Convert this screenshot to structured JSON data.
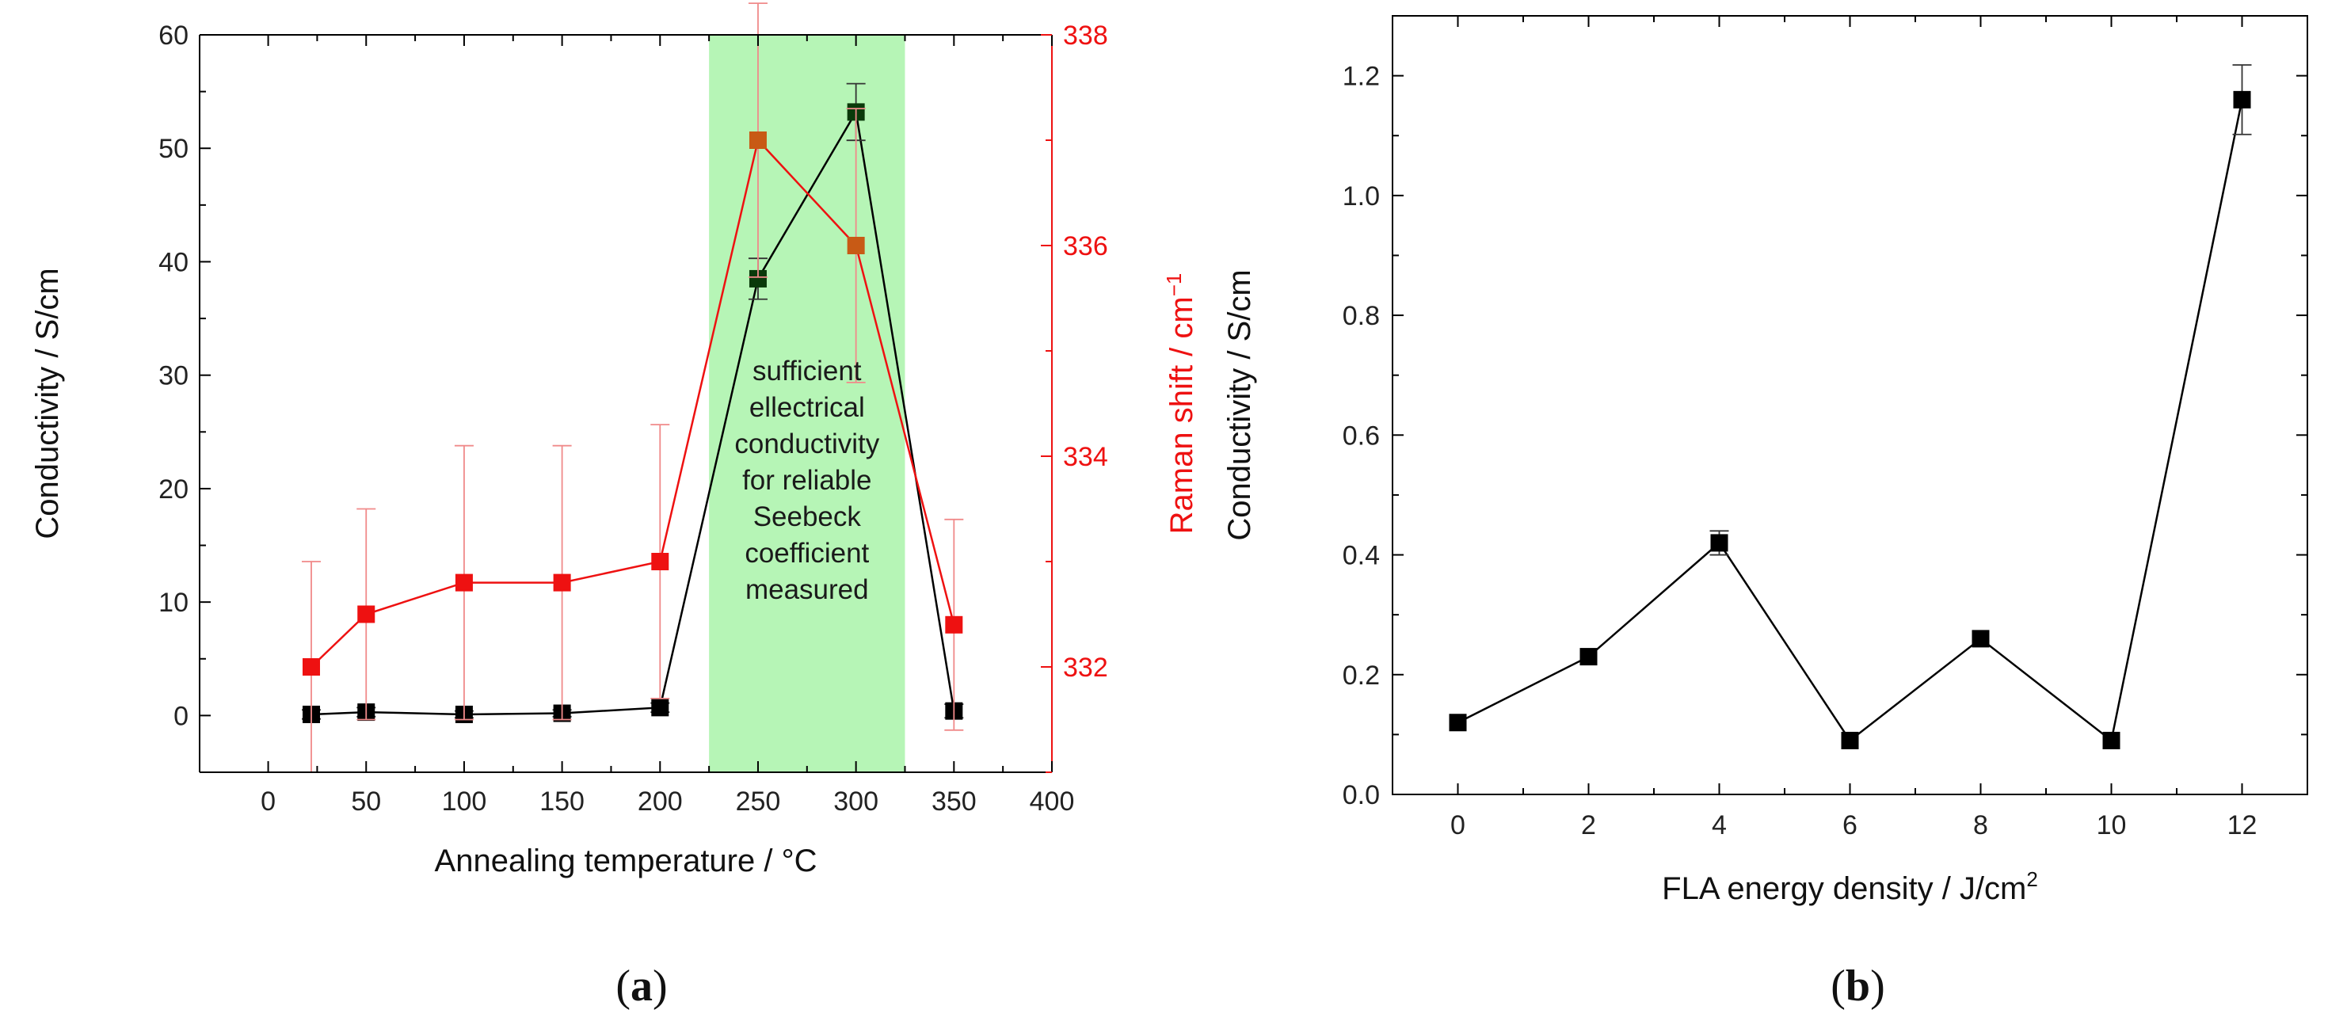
{
  "colors": {
    "axis": "#000000",
    "conductivity_series": "#000000",
    "raman_series": "#ee1111",
    "raman_axis": "#ee1111",
    "highlight_fill": "#b6f5b6",
    "highlight_marker": "#0a3a0a",
    "raman_highlight_marker": "#c85a15"
  },
  "panels": {
    "a": {
      "label_open": "(",
      "label_letter": "a",
      "label_close": ")"
    },
    "b": {
      "label_open": "(",
      "label_letter": "b",
      "label_close": ")"
    }
  },
  "chart_data": [
    {
      "id": "a",
      "type": "line",
      "title": "",
      "xlabel": "Annealing temperature / °C",
      "ylabel": "Conductivity / S/cm",
      "y2label_main": "Raman shift / cm",
      "y2label_sup": "−1",
      "xlim": [
        -35,
        400
      ],
      "ylim": [
        -5,
        60
      ],
      "y2lim": [
        331.0,
        338.0
      ],
      "xticks": [
        0,
        50,
        100,
        150,
        200,
        250,
        300,
        350,
        400
      ],
      "yticks": [
        0,
        10,
        20,
        30,
        40,
        50,
        60
      ],
      "y2ticks": [
        332,
        334,
        336,
        338
      ],
      "highlight": {
        "x_range": [
          225,
          325
        ],
        "text": [
          "sufficient",
          "ellectrical",
          "conductivity",
          "for reliable",
          "Seebeck",
          "coefficient",
          "measured"
        ]
      },
      "series": [
        {
          "name": "Conductivity",
          "axis": "left",
          "x": [
            22,
            50,
            100,
            150,
            200,
            250,
            300,
            350
          ],
          "values": [
            0.1,
            0.3,
            0.1,
            0.2,
            0.7,
            38.5,
            53.2,
            0.4
          ],
          "errors": [
            0.4,
            0.4,
            0.3,
            0.3,
            0.4,
            1.8,
            2.5,
            0.6
          ]
        },
        {
          "name": "Raman shift",
          "axis": "right",
          "x": [
            22,
            50,
            100,
            150,
            200,
            250,
            300,
            350
          ],
          "values": [
            332.0,
            332.5,
            332.8,
            332.8,
            333.0,
            337.0,
            336.0,
            332.4
          ],
          "errors": [
            1.0,
            1.0,
            1.3,
            1.3,
            1.3,
            1.3,
            1.3,
            1.0
          ]
        }
      ]
    },
    {
      "id": "b",
      "type": "line",
      "title": "",
      "xlabel_main": "FLA energy density / J/cm",
      "xlabel_sup": "2",
      "ylabel": "Conductivity / S/cm",
      "xlim": [
        -1,
        13
      ],
      "ylim": [
        0.0,
        1.3
      ],
      "xticks": [
        0,
        2,
        4,
        6,
        8,
        10,
        12
      ],
      "yticks": [
        "0.0",
        "0.2",
        "0.4",
        "0.6",
        "0.8",
        "1.0",
        "1.2"
      ],
      "series": [
        {
          "name": "Conductivity",
          "x": [
            0,
            2,
            4,
            6,
            8,
            10,
            12
          ],
          "values": [
            0.12,
            0.23,
            0.42,
            0.09,
            0.26,
            0.09,
            1.16
          ],
          "errors": [
            0.005,
            0.005,
            0.02,
            0.005,
            0.005,
            0.005,
            0.058
          ]
        }
      ]
    }
  ]
}
